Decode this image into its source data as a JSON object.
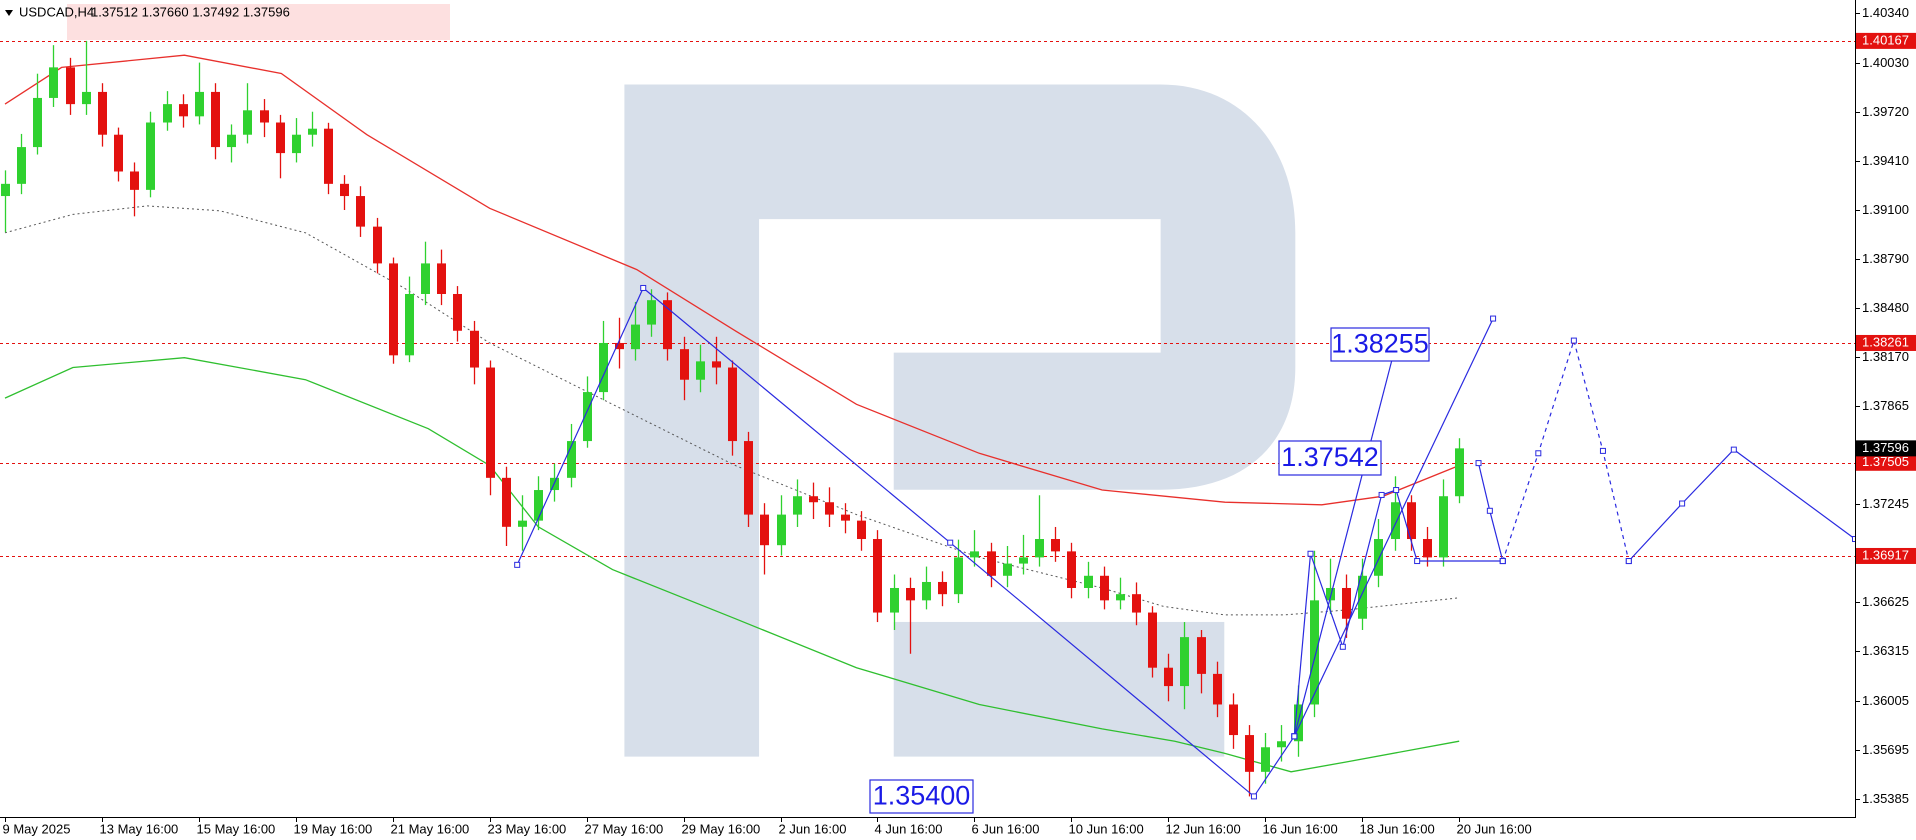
{
  "chart_data": {
    "type": "candlestick",
    "header": {
      "symbol": "USDCAD,H4",
      "quote": "1.37512 1.37660 1.37492 1.37596"
    },
    "xlim": [
      -0.31,
      114.5
    ],
    "ylim": [
      1.3527,
      1.40425
    ],
    "xticks": [
      {
        "value": 0,
        "label": "9 May 2025"
      },
      {
        "value": 6,
        "label": "13 May 16:00"
      },
      {
        "value": 12,
        "label": "15 May 16:00"
      },
      {
        "value": 18,
        "label": "19 May 16:00"
      },
      {
        "value": 24,
        "label": "21 May 16:00"
      },
      {
        "value": 30,
        "label": "23 May 16:00"
      },
      {
        "value": 36,
        "label": "27 May 16:00"
      },
      {
        "value": 42,
        "label": "29 May 16:00"
      },
      {
        "value": 48,
        "label": "2 Jun 16:00"
      },
      {
        "value": 54,
        "label": "4 Jun 16:00"
      },
      {
        "value": 60,
        "label": "6 Jun 16:00"
      },
      {
        "value": 66,
        "label": "10 Jun 16:00"
      },
      {
        "value": 72,
        "label": "12 Jun 16:00"
      },
      {
        "value": 78,
        "label": "16 Jun 16:00"
      },
      {
        "value": 84,
        "label": "18 Jun 16:00"
      },
      {
        "value": 90,
        "label": "20 Jun 16:00"
      }
    ],
    "yticks": [
      {
        "value": 1.4034,
        "label": "1.40340"
      },
      {
        "value": 1.4003,
        "label": "1.40030"
      },
      {
        "value": 1.3972,
        "label": "1.39720"
      },
      {
        "value": 1.3941,
        "label": "1.39410"
      },
      {
        "value": 1.391,
        "label": "1.39100"
      },
      {
        "value": 1.3879,
        "label": "1.38790"
      },
      {
        "value": 1.3848,
        "label": "1.38480"
      },
      {
        "value": 1.3817,
        "label": "1.38170"
      },
      1.37865,
      1.37245,
      1.36625,
      1.36315,
      1.36005,
      1.35695,
      1.35385
    ],
    "colors": {
      "up": "#2fd12f",
      "down": "#e3110f"
    },
    "open": [
      1.39188,
      1.39265,
      1.39497,
      1.39807,
      1.4,
      1.39768,
      1.39845,
      1.39575,
      1.39343,
      1.39227,
      1.39652,
      1.39768,
      1.39691,
      1.39845,
      1.39497,
      1.39575,
      1.39729,
      1.39652,
      1.39459,
      1.39575,
      1.39613,
      1.39265,
      1.39188,
      1.38995,
      1.38763,
      1.38183,
      1.3857,
      1.38763,
      1.3857,
      1.38338,
      1.38106,
      1.3741,
      1.37101,
      1.3714,
      1.37333,
      1.3741,
      1.37642,
      1.37951,
      1.38261,
      1.38222,
      1.38377,
      1.38531,
      1.38222,
      1.38029,
      1.38145,
      1.38106,
      1.37642,
      1.37178,
      1.36985,
      1.37178,
      1.37294,
      1.37256,
      1.37178,
      1.3714,
      1.37024,
      1.3656,
      1.36715,
      1.36637,
      1.36753,
      1.36676,
      1.36908,
      1.36946,
      1.36792,
      1.36869,
      1.36908,
      1.37024,
      1.36946,
      1.36715,
      1.36792,
      1.36637,
      1.36676,
      1.3656,
      1.36212,
      1.36096,
      1.36405,
      1.36173,
      1.3598,
      1.35787,
      1.35555,
      1.3571,
      1.35748,
      1.3598,
      1.36637,
      1.36715,
      1.36521,
      1.36792,
      1.37024,
      1.37256,
      1.37024,
      1.36908,
      1.37294
    ],
    "high": [
      1.3935,
      1.3958,
      1.3996,
      1.4014,
      1.4006,
      1.40167,
      1.399,
      1.3962,
      1.394,
      1.3972,
      1.3985,
      1.3983,
      1.4003,
      1.399,
      1.3964,
      1.399,
      1.398,
      1.397,
      1.3968,
      1.3972,
      1.3965,
      1.3932,
      1.3925,
      1.3905,
      1.388,
      1.3868,
      1.389,
      1.3885,
      1.3862,
      1.384,
      1.3815,
      1.3748,
      1.373,
      1.3742,
      1.375,
      1.3775,
      1.3805,
      1.384,
      1.3842,
      1.3852,
      1.386,
      1.3858,
      1.383,
      1.3825,
      1.383,
      1.3815,
      1.377,
      1.3725,
      1.373,
      1.374,
      1.3738,
      1.3735,
      1.3725,
      1.372,
      1.3708,
      1.368,
      1.3678,
      1.3685,
      1.3682,
      1.3702,
      1.3708,
      1.37,
      1.3698,
      1.3705,
      1.373,
      1.371,
      1.37,
      1.3688,
      1.3685,
      1.3678,
      1.3675,
      1.366,
      1.363,
      1.365,
      1.3645,
      1.3625,
      1.3605,
      1.3585,
      1.358,
      1.3585,
      1.361,
      1.3695,
      1.369,
      1.368,
      1.369,
      1.3715,
      1.3742,
      1.373,
      1.371,
      1.374,
      1.3766
    ],
    "low": [
      1.3896,
      1.392,
      1.3945,
      1.3975,
      1.397,
      1.397,
      1.395,
      1.3928,
      1.3906,
      1.3918,
      1.396,
      1.3962,
      1.3964,
      1.3942,
      1.394,
      1.3952,
      1.3956,
      1.393,
      1.394,
      1.395,
      1.392,
      1.391,
      1.3893,
      1.387,
      1.3813,
      1.3814,
      1.385,
      1.385,
      1.3827,
      1.38,
      1.373,
      1.3698,
      1.3695,
      1.3708,
      1.3726,
      1.3735,
      1.376,
      1.379,
      1.381,
      1.3815,
      1.383,
      1.3815,
      1.379,
      1.3795,
      1.38,
      1.3755,
      1.371,
      1.368,
      1.3692,
      1.371,
      1.3715,
      1.371,
      1.3706,
      1.3695,
      1.365,
      1.3645,
      1.363,
      1.3658,
      1.366,
      1.3662,
      1.3685,
      1.3672,
      1.3672,
      1.368,
      1.3685,
      1.3688,
      1.3665,
      1.3665,
      1.3658,
      1.3658,
      1.3648,
      1.3615,
      1.36,
      1.3595,
      1.3605,
      1.359,
      1.357,
      1.354,
      1.3548,
      1.3562,
      1.3565,
      1.359,
      1.3655,
      1.364,
      1.3645,
      1.3672,
      1.3695,
      1.3695,
      1.3685,
      1.3685,
      1.3725
    ],
    "close": [
      1.39265,
      1.39497,
      1.39807,
      1.4,
      1.39768,
      1.39845,
      1.39575,
      1.39343,
      1.39227,
      1.39652,
      1.39768,
      1.39691,
      1.39845,
      1.39497,
      1.39575,
      1.39729,
      1.39652,
      1.39459,
      1.39575,
      1.39613,
      1.39265,
      1.39188,
      1.38995,
      1.38763,
      1.38183,
      1.3857,
      1.38763,
      1.3857,
      1.38338,
      1.38106,
      1.3741,
      1.37101,
      1.3714,
      1.37333,
      1.3741,
      1.37642,
      1.37951,
      1.38261,
      1.38222,
      1.38377,
      1.38531,
      1.38222,
      1.38029,
      1.38145,
      1.38106,
      1.37642,
      1.37178,
      1.36985,
      1.37178,
      1.37294,
      1.37256,
      1.37178,
      1.3714,
      1.37024,
      1.3656,
      1.36715,
      1.36637,
      1.36753,
      1.36676,
      1.36908,
      1.36946,
      1.36792,
      1.36869,
      1.36908,
      1.37024,
      1.36946,
      1.36715,
      1.36792,
      1.36637,
      1.36676,
      1.3656,
      1.36212,
      1.36096,
      1.36405,
      1.36173,
      1.3598,
      1.35787,
      1.35555,
      1.3571,
      1.35748,
      1.3598,
      1.36637,
      1.36715,
      1.36521,
      1.36792,
      1.37024,
      1.37256,
      1.37024,
      1.36908,
      1.37294,
      1.37596
    ],
    "series": [
      {
        "color": "#e8302c",
        "dashed": false,
        "x": [
          0,
          3.5,
          11.1,
          17.1,
          22.4,
          30,
          39.1,
          45.2,
          52.7,
          60.3,
          67.9,
          75.5,
          81.5,
          85.3,
          90
        ],
        "values": [
          1.39768,
          1.4,
          1.40077,
          1.39961,
          1.39575,
          1.39111,
          1.38724,
          1.38338,
          1.37874,
          1.37565,
          1.37333,
          1.37256,
          1.3724,
          1.37294,
          1.37488
        ]
      },
      {
        "color": "#2fbf2f",
        "dashed": false,
        "x": [
          0,
          4.2,
          11.1,
          18.6,
          26.2,
          30,
          33,
          37.6,
          45.2,
          52.7,
          60.3,
          67.9,
          72.4,
          75.5,
          79.6,
          83,
          90
        ],
        "values": [
          1.37913,
          1.38106,
          1.38168,
          1.38029,
          1.3772,
          1.37488,
          1.37101,
          1.36831,
          1.36521,
          1.36212,
          1.3598,
          1.35826,
          1.35748,
          1.35671,
          1.35555,
          1.35617,
          1.35748
        ]
      },
      {
        "color": "#555555",
        "dashed": true,
        "x": [
          0,
          4.2,
          8.8,
          13.3,
          18.6,
          24.7,
          30,
          37.6,
          45.2,
          52.7,
          60.3,
          67.9,
          71.7,
          75.5,
          79.2,
          83,
          90
        ],
        "values": [
          1.38956,
          1.39072,
          1.39126,
          1.39095,
          1.38956,
          1.38608,
          1.38261,
          1.37874,
          1.37488,
          1.37178,
          1.36908,
          1.36715,
          1.36599,
          1.36545,
          1.36545,
          1.36576,
          1.36653
        ]
      }
    ],
    "waves": {
      "color": "#2a2ae0",
      "lines": [
        {
          "dashed": false,
          "x": [
            31.7,
            39.5,
            58.5,
            77.3,
            79.8
          ],
          "values": [
            1.36861,
            1.38608,
            1.37001,
            1.354,
            1.35779
          ]
        },
        {
          "dashed": false,
          "x": [
            79.8,
            86.1
          ],
          "values": [
            1.35779,
            1.38255
          ]
        },
        {
          "dashed": false,
          "x": [
            79.8,
            92.1
          ],
          "values": [
            1.35779,
            1.38415
          ]
        },
        {
          "dashed": false,
          "x": [
            79.8,
            80.8,
            82.8,
            85.2,
            86.1,
            87.4,
            92.7
          ],
          "values": [
            1.35779,
            1.36931,
            1.36344,
            1.37302,
            1.37333,
            1.36885,
            1.36885
          ]
        },
        {
          "dashed": false,
          "x": [
            91.2,
            91.9,
            92.7
          ],
          "values": [
            1.37503,
            1.37202,
            1.36885
          ]
        },
        {
          "dashed": true,
          "x": [
            92.7,
            94.9,
            97.1,
            98.9,
            100.5
          ],
          "values": [
            1.36885,
            1.37565,
            1.38276,
            1.3758,
            1.36885
          ]
        },
        {
          "dashed": false,
          "x": [
            100.5,
            103.8,
            107,
            114.5
          ],
          "values": [
            1.36885,
            1.37248,
            1.37588,
            1.37024
          ]
        }
      ]
    },
    "levels": {
      "color": "#e3110f",
      "values": [
        1.40167,
        1.38261,
        1.37505,
        1.36917
      ]
    },
    "current_price": 1.37596,
    "annotations": [
      "1.38255",
      "1.37542",
      "1.35400"
    ]
  }
}
